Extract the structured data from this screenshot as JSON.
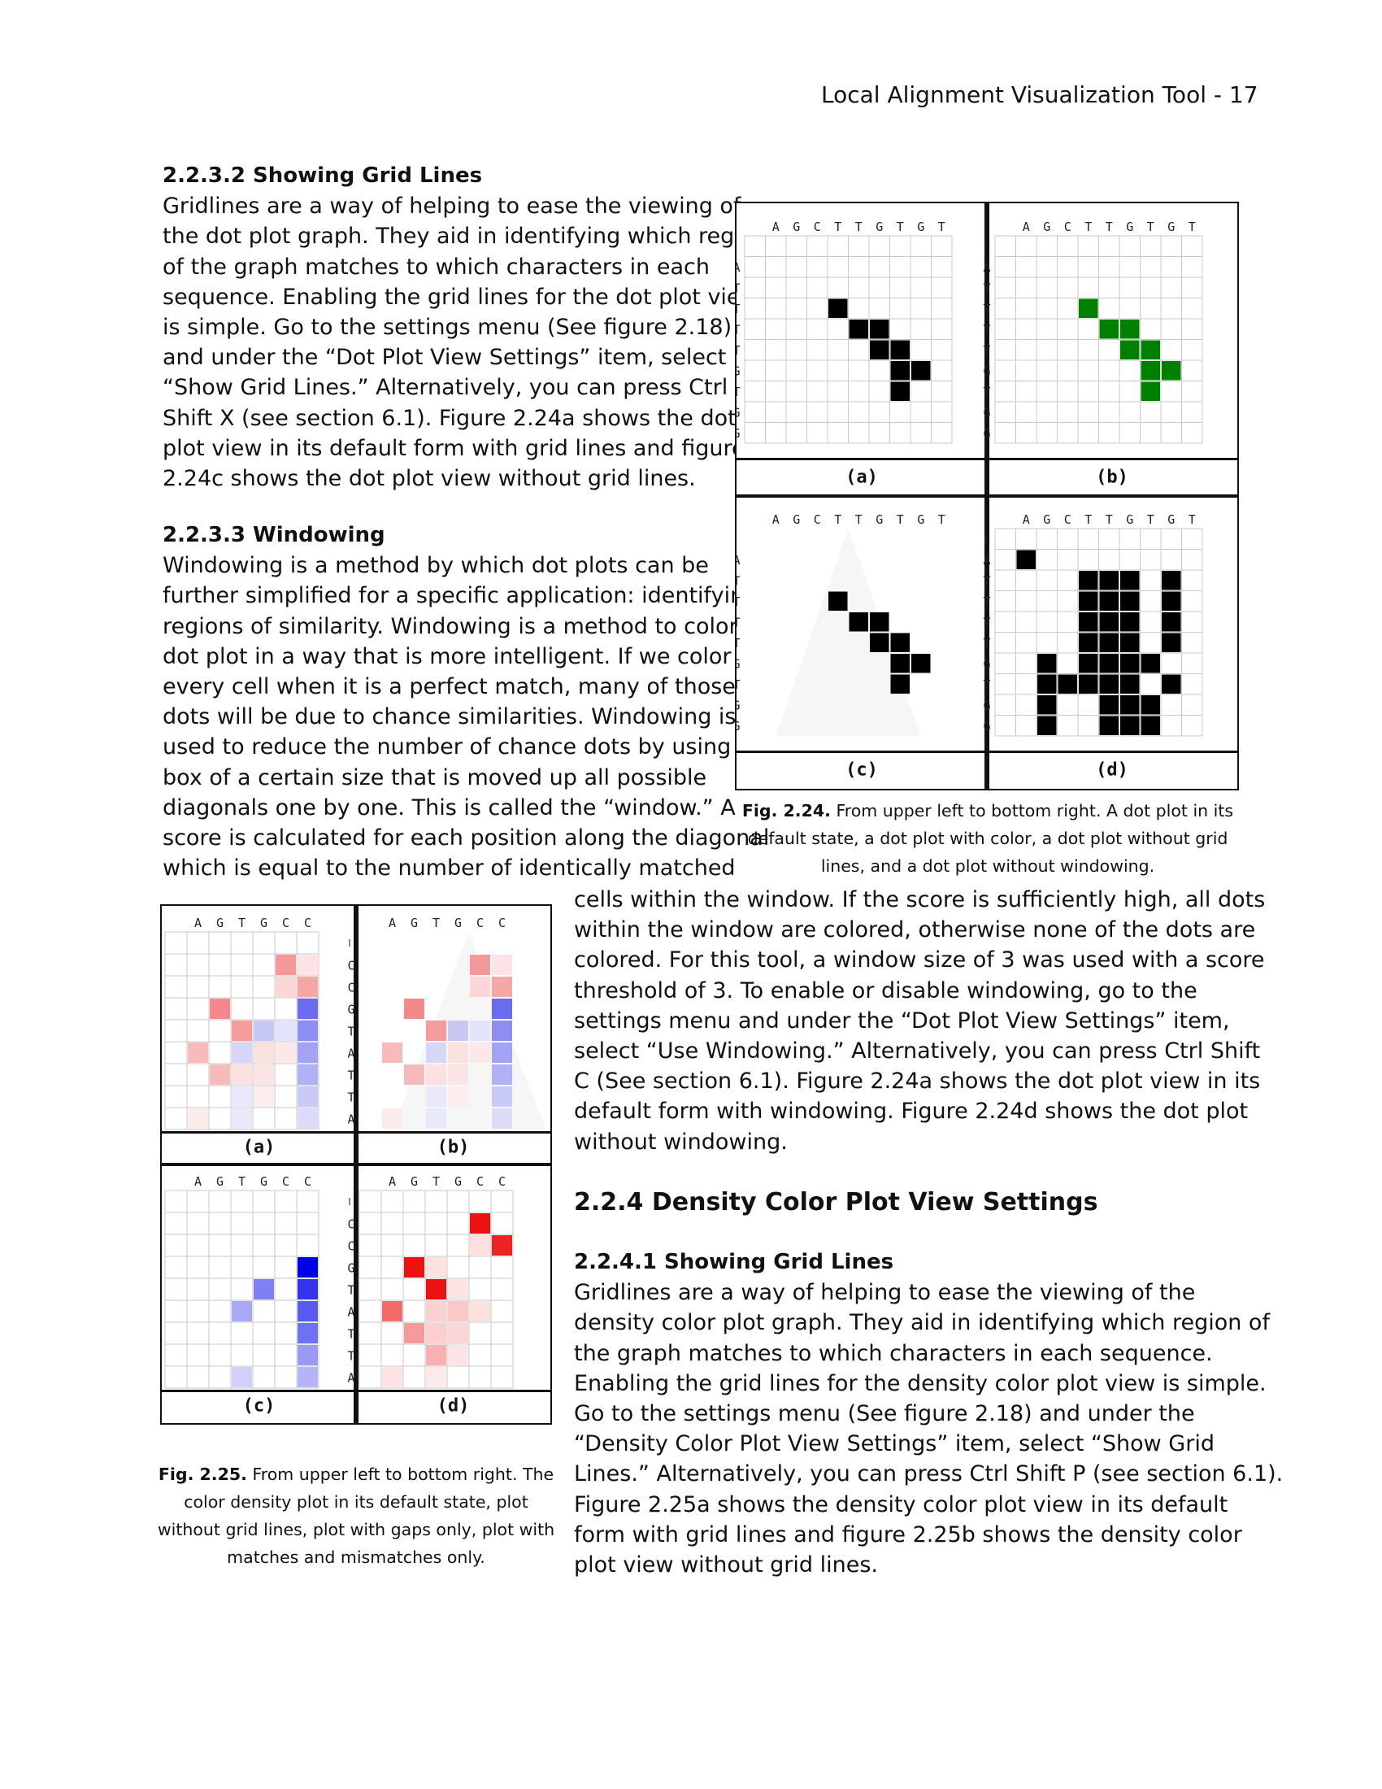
{
  "header": "Local Alignment Visualization Tool - 17",
  "sec_2232": {
    "title": "2.2.3.2 Showing Grid Lines",
    "lines": [
      "Gridlines are a way of helping to ease the viewing of",
      "the dot plot graph. They aid in identifying which region",
      "of the graph matches to which characters in each",
      "sequence. Enabling the grid lines for the dot plot view",
      "is simple. Go to the settings menu (See figure 2.18)",
      "and under the “Dot Plot View Settings” item, select",
      "“Show Grid Lines.” Alternatively, you can press Ctrl",
      "Shift X (see section 6.1). Figure 2.24a shows the dot",
      "plot view in its default form with grid lines and figure",
      "2.24c shows the dot plot view without grid lines."
    ]
  },
  "sec_2233": {
    "title": "2.2.3.3 Windowing",
    "lines": [
      "Windowing is a method by which dot plots can be",
      "further simplified for a specific application: identifying",
      "regions of similarity. Windowing is a method to color a",
      "dot plot in a way that is more intelligent. If we color",
      "every cell when it is a perfect match, many of those",
      "dots will be due to chance similarities. Windowing is",
      "used to reduce the number of chance dots by using a",
      "box of a certain size that is moved up all possible",
      "diagonals one by one. This is called the “window.” A",
      "score is calculated for each position along the diagonal",
      "which is equal to the number of identically matched"
    ],
    "cont_lines": [
      "cells within the window. If the score is sufficiently high, all dots",
      "within the window are colored, otherwise none of the dots are",
      "colored. For this tool, a window size of 3 was used with a score",
      "threshold of 3. To enable or disable windowing, go to the",
      "settings menu and under the “Dot Plot View Settings” item,",
      "select “Use Windowing.” Alternatively, you can press Ctrl Shift",
      "C (See section 6.1). Figure 2.24a shows the dot plot view in its",
      "default form with windowing. Figure 2.24d shows the dot plot",
      "without windowing."
    ]
  },
  "sec_224": {
    "title": "2.2.4 Density Color Plot View Settings"
  },
  "sec_2241": {
    "title": "2.2.4.1 Showing Grid Lines",
    "lines": [
      "Gridlines are a way of helping to ease the viewing of the",
      "density color plot graph. They aid in identifying which region of",
      "the graph matches to which characters in each sequence.",
      "Enabling the grid lines for the density color plot view is simple.",
      "Go to the settings menu (See figure 2.18) and under the",
      "“Density Color Plot View Settings” item, select “Show Grid",
      "Lines.” Alternatively, you can press Ctrl Shift P (see section 6.1).",
      "Figure 2.25a shows the density color plot view in its default",
      "form with grid lines and figure 2.25b shows the density color",
      "plot view without grid lines."
    ]
  },
  "fig224": {
    "caption_label": "Fig. 2.24.",
    "caption_text": "From upper left to bottom right. A dot plot in its default state, a dot plot with color, a dot plot without grid lines, and a dot plot without windowing.",
    "top": "AGCTTGTGT",
    "left": "_ATTTTGTGG",
    "panels": [
      {
        "label": "(a)",
        "color": "#000000",
        "grid": true,
        "cells": [
          [
            4,
            3
          ],
          [
            5,
            4
          ],
          [
            6,
            4
          ],
          [
            6,
            5
          ],
          [
            7,
            5
          ],
          [
            7,
            6
          ],
          [
            8,
            6
          ],
          [
            7,
            7
          ]
        ]
      },
      {
        "label": "(b)",
        "color": "#008000",
        "grid": true,
        "cells": [
          [
            4,
            3
          ],
          [
            5,
            4
          ],
          [
            6,
            4
          ],
          [
            6,
            5
          ],
          [
            7,
            5
          ],
          [
            7,
            6
          ],
          [
            8,
            6
          ],
          [
            7,
            7
          ]
        ]
      },
      {
        "label": "(c)",
        "color": "#000000",
        "grid": false,
        "cells": [
          [
            4,
            3
          ],
          [
            5,
            4
          ],
          [
            6,
            4
          ],
          [
            6,
            5
          ],
          [
            7,
            5
          ],
          [
            7,
            6
          ],
          [
            8,
            6
          ],
          [
            7,
            7
          ]
        ]
      },
      {
        "label": "(d)",
        "color": "#000000",
        "grid": true,
        "cells": [
          [
            1,
            1
          ],
          [
            4,
            2
          ],
          [
            5,
            2
          ],
          [
            4,
            3
          ],
          [
            5,
            3
          ],
          [
            4,
            4
          ],
          [
            5,
            4
          ],
          [
            4,
            5
          ],
          [
            5,
            5
          ],
          [
            2,
            6
          ],
          [
            4,
            6
          ],
          [
            2,
            7
          ],
          [
            3,
            7
          ],
          [
            4,
            7
          ],
          [
            6,
            7
          ],
          [
            2,
            8
          ],
          [
            2,
            9
          ],
          [
            4,
            2
          ],
          [
            6,
            2
          ],
          [
            8,
            2
          ],
          [
            6,
            3
          ],
          [
            8,
            3
          ],
          [
            6,
            4
          ],
          [
            8,
            4
          ],
          [
            6,
            5
          ],
          [
            8,
            5
          ],
          [
            7,
            6
          ],
          [
            5,
            7
          ],
          [
            8,
            7
          ],
          [
            6,
            8
          ],
          [
            7,
            8
          ],
          [
            6,
            9
          ],
          [
            7,
            9
          ],
          [
            5,
            6
          ],
          [
            6,
            6
          ],
          [
            5,
            8
          ],
          [
            5,
            9
          ]
        ]
      }
    ]
  },
  "fig225": {
    "caption_label": "Fig. 2.25.",
    "caption_text": "From upper left to bottom right. The color density plot in its default state, plot without grid lines, plot with gaps only, plot with matches and mismatches only.",
    "top": "AGTGCC",
    "left": "_CCGTATTA",
    "panels": [
      {
        "label": "(a)",
        "grid": true,
        "cells": [
          [
            5,
            1,
            "#f4989a"
          ],
          [
            6,
            1,
            "#fde3e3"
          ],
          [
            5,
            2,
            "#fdd6d6"
          ],
          [
            6,
            2,
            "#f7a6a6"
          ],
          [
            2,
            3,
            "#f4898b"
          ],
          [
            6,
            3,
            "#6b6bf0"
          ],
          [
            3,
            4,
            "#f69c9c"
          ],
          [
            4,
            4,
            "#c8c8f5"
          ],
          [
            5,
            4,
            "#e4e4fb"
          ],
          [
            6,
            4,
            "#8d8df3"
          ],
          [
            1,
            5,
            "#f9baba"
          ],
          [
            3,
            5,
            "#d6d6f8"
          ],
          [
            4,
            5,
            "#fbe0e0"
          ],
          [
            5,
            5,
            "#fbe9e9"
          ],
          [
            6,
            5,
            "#a3a3f5"
          ],
          [
            2,
            6,
            "#f7baba"
          ],
          [
            3,
            6,
            "#fde0e0"
          ],
          [
            4,
            6,
            "#fce4e4"
          ],
          [
            6,
            6,
            "#b1b1f6"
          ],
          [
            3,
            7,
            "#e9e9fb"
          ],
          [
            4,
            7,
            "#fdeeee"
          ],
          [
            6,
            7,
            "#cacaf8"
          ],
          [
            1,
            8,
            "#fdeaea"
          ],
          [
            3,
            8,
            "#e8e8fb"
          ],
          [
            6,
            8,
            "#dcdcfa"
          ]
        ]
      },
      {
        "label": "(b)",
        "grid": false,
        "cells": [
          [
            5,
            1,
            "#f4989a"
          ],
          [
            6,
            1,
            "#fde3e3"
          ],
          [
            5,
            2,
            "#fdd6d6"
          ],
          [
            6,
            2,
            "#f7a6a6"
          ],
          [
            2,
            3,
            "#f4898b"
          ],
          [
            6,
            3,
            "#6b6bf0"
          ],
          [
            3,
            4,
            "#f69c9c"
          ],
          [
            4,
            4,
            "#c8c8f5"
          ],
          [
            5,
            4,
            "#e4e4fb"
          ],
          [
            6,
            4,
            "#8d8df3"
          ],
          [
            1,
            5,
            "#f9baba"
          ],
          [
            3,
            5,
            "#d6d6f8"
          ],
          [
            4,
            5,
            "#fbe0e0"
          ],
          [
            5,
            5,
            "#fbe9e9"
          ],
          [
            6,
            5,
            "#a3a3f5"
          ],
          [
            2,
            6,
            "#f7baba"
          ],
          [
            3,
            6,
            "#fde0e0"
          ],
          [
            4,
            6,
            "#fce4e4"
          ],
          [
            6,
            6,
            "#b1b1f6"
          ],
          [
            3,
            7,
            "#e9e9fb"
          ],
          [
            4,
            7,
            "#fdeeee"
          ],
          [
            6,
            7,
            "#cacaf8"
          ],
          [
            1,
            8,
            "#fdeaea"
          ],
          [
            3,
            8,
            "#e8e8fb"
          ],
          [
            6,
            8,
            "#dcdcfa"
          ]
        ]
      },
      {
        "label": "(c)",
        "grid": true,
        "cells": [
          [
            6,
            3,
            "#0000ee"
          ],
          [
            4,
            4,
            "#8080f0"
          ],
          [
            6,
            4,
            "#3434ee"
          ],
          [
            3,
            5,
            "#a8a8f4"
          ],
          [
            6,
            5,
            "#5a5af0"
          ],
          [
            6,
            6,
            "#7070f2"
          ],
          [
            6,
            7,
            "#9a9af4"
          ],
          [
            3,
            8,
            "#d0d0f8"
          ],
          [
            6,
            8,
            "#b4b4f6"
          ]
        ]
      },
      {
        "label": "(d)",
        "grid": true,
        "cells": [
          [
            5,
            1,
            "#ee1111"
          ],
          [
            5,
            2,
            "#fce0e0"
          ],
          [
            6,
            2,
            "#ee2222"
          ],
          [
            2,
            3,
            "#ee1111"
          ],
          [
            3,
            3,
            "#fde0e0"
          ],
          [
            3,
            4,
            "#ee1111"
          ],
          [
            4,
            4,
            "#fde4e4"
          ],
          [
            1,
            5,
            "#f36c6c"
          ],
          [
            3,
            5,
            "#fad0d0"
          ],
          [
            4,
            5,
            "#fbc8c8"
          ],
          [
            5,
            5,
            "#fde0e0"
          ],
          [
            2,
            6,
            "#f59a9a"
          ],
          [
            3,
            6,
            "#fccece"
          ],
          [
            4,
            6,
            "#fcd6d6"
          ],
          [
            3,
            7,
            "#f8b0b0"
          ],
          [
            4,
            7,
            "#fde4e4"
          ],
          [
            1,
            8,
            "#fde4e4"
          ],
          [
            3,
            8,
            "#fdeaea"
          ]
        ]
      }
    ]
  }
}
